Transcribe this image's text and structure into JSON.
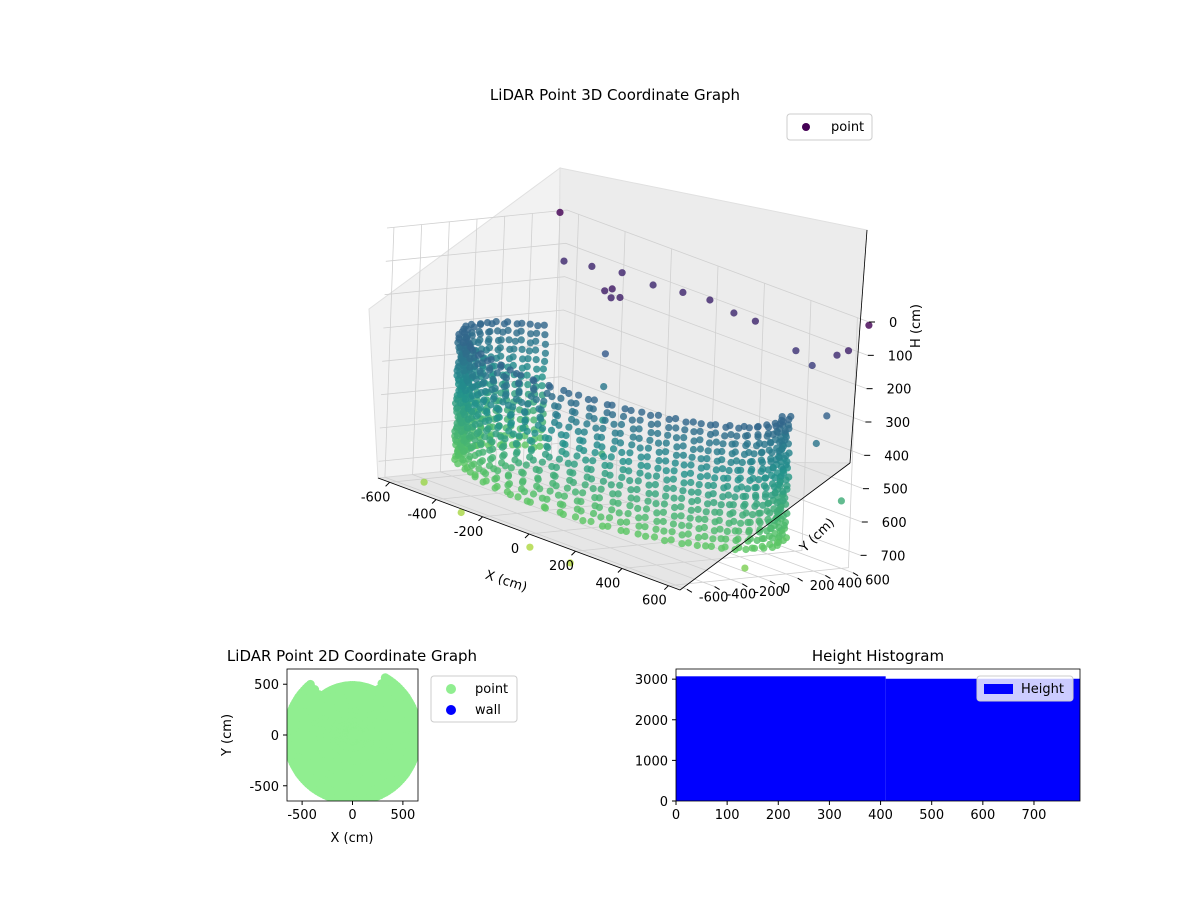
{
  "chart_data": [
    {
      "type": "scatter",
      "projection": "3d",
      "title": "LiDAR Point 3D Coordinate Graph",
      "xlabel": "X (cm)",
      "ylabel": "Y (cm)",
      "zlabel": "H (cm)",
      "xlim": [
        -650,
        650
      ],
      "ylim": [
        -650,
        650
      ],
      "zlim": [
        750,
        0
      ],
      "xticks": [
        -600,
        -400,
        -200,
        0,
        200,
        400,
        600
      ],
      "yticks": [
        -600,
        -400,
        -200,
        0,
        200,
        400,
        600
      ],
      "zticks": [
        0,
        100,
        200,
        300,
        400,
        500,
        600,
        700
      ],
      "colormap": "viridis",
      "grid": true,
      "legend_position": "top-right",
      "series": [
        {
          "name": "point",
          "color": "#440154",
          "points": [
            {
              "x": -520,
              "y": 420,
              "h": 110
            },
            {
              "x": -430,
              "y": 470,
              "h": 105
            },
            {
              "x": -330,
              "y": 520,
              "h": 100
            },
            {
              "x": -220,
              "y": 560,
              "h": 110
            },
            {
              "x": -110,
              "y": 590,
              "h": 105
            },
            {
              "x": 0,
              "y": 600,
              "h": 100
            },
            {
              "x": 110,
              "y": 590,
              "h": 110
            },
            {
              "x": 220,
              "y": 560,
              "h": 105
            },
            {
              "x": -120,
              "y": 40,
              "h": 80
            },
            {
              "x": -80,
              "y": 20,
              "h": 90
            },
            {
              "x": -100,
              "y": 60,
              "h": 70
            },
            {
              "x": -60,
              "y": 50,
              "h": 85
            },
            {
              "x": -90,
              "y": 10,
              "h": 260
            },
            {
              "x": -95,
              "y": 15,
              "h": 360
            },
            {
              "x": -92,
              "y": 12,
              "h": 460
            },
            {
              "x": -88,
              "y": 8,
              "h": 560
            },
            {
              "x": 420,
              "y": 520,
              "h": 140
            },
            {
              "x": 480,
              "y": 540,
              "h": 170
            },
            {
              "x": 560,
              "y": 580,
              "h": 120
            },
            {
              "x": 620,
              "y": 560,
              "h": 90
            },
            {
              "x": 620,
              "y": 420,
              "h": 280
            },
            {
              "x": 650,
              "y": 300,
              "h": 350
            },
            {
              "x": 600,
              "y": -100,
              "h": 720
            },
            {
              "x": 560,
              "y": 650,
              "h": 560
            },
            {
              "x": -600,
              "y": -400,
              "h": 760
            },
            {
              "x": -350,
              "y": -550,
              "h": 780
            },
            {
              "x": 150,
              "y": -600,
              "h": 800
            },
            {
              "x": 0,
              "y": -640,
              "h": 790
            },
            {
              "x": 650,
              "y": 650,
              "h": 10
            },
            {
              "x": -650,
              "y": 600,
              "h": 5
            }
          ]
        }
      ],
      "wall_ring": {
        "radius": 600,
        "h_min": 300,
        "h_max": 680,
        "theta_min_deg": 150,
        "theta_max_deg": 390
      }
    },
    {
      "type": "scatter",
      "title": "LiDAR Point 2D Coordinate Graph",
      "xlabel": "X (cm)",
      "ylabel": "Y (cm)",
      "xlim": [
        -650,
        650
      ],
      "ylim": [
        -650,
        650
      ],
      "xticks": [
        -500,
        0,
        500
      ],
      "yticks": [
        -500,
        0,
        500
      ],
      "legend_position": "outside-right",
      "series": [
        {
          "name": "point",
          "color": "#90ee90"
        },
        {
          "name": "wall",
          "color": "#0000ff"
        }
      ],
      "disk_radius": 650
    },
    {
      "type": "bar",
      "title": "Height Histogram",
      "xlim": [
        0,
        790
      ],
      "ylim": [
        0,
        3250
      ],
      "xticks": [
        0,
        100,
        200,
        300,
        400,
        500,
        600,
        700
      ],
      "yticks": [
        0,
        1000,
        2000,
        3000
      ],
      "legend_position": "top-right",
      "series": [
        {
          "name": "Height",
          "color": "#0000ff"
        }
      ],
      "bins": [
        {
          "start": 0,
          "end": 410,
          "count": 3070
        },
        {
          "start": 410,
          "end": 790,
          "count": 3010
        }
      ]
    }
  ]
}
